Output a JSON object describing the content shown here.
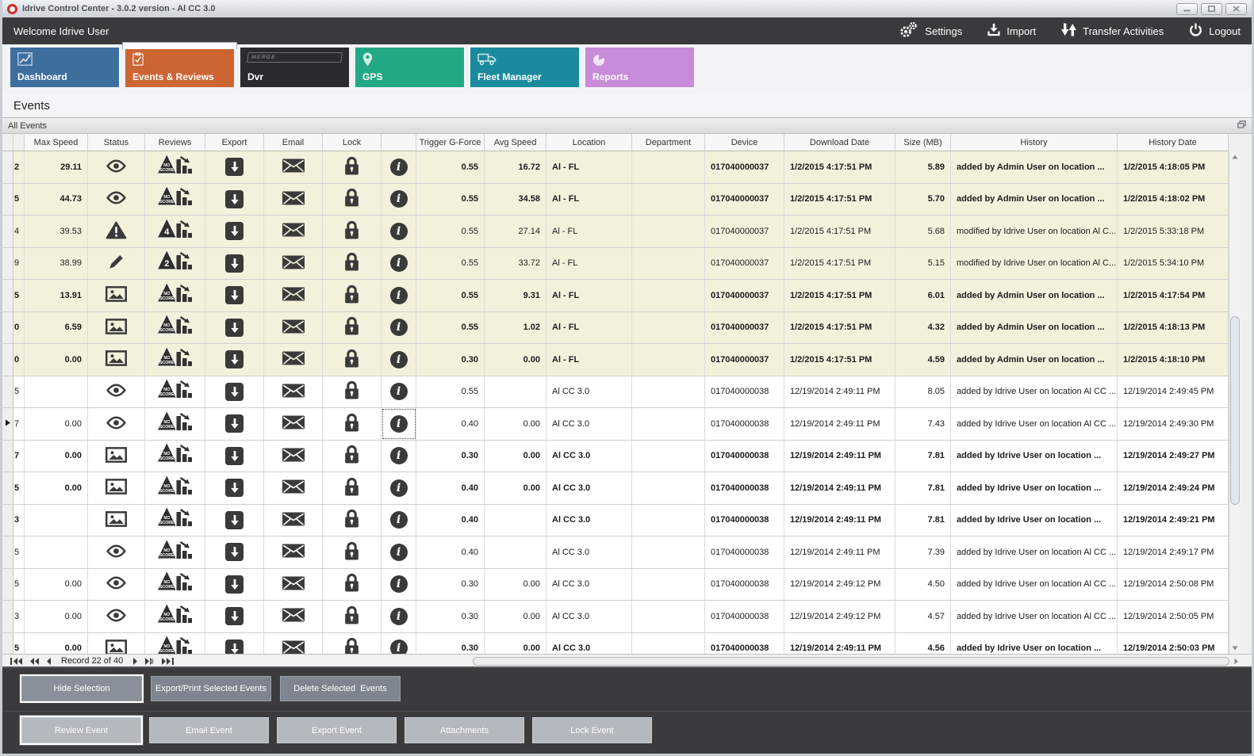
{
  "window": {
    "title": "Idrive Control Center - 3.0.2 version - Al CC 3.0",
    "controls": [
      "minimize",
      "maximize",
      "close"
    ]
  },
  "toolbar": {
    "welcome": "Welcome Idrive User",
    "actions": [
      {
        "label": "Settings",
        "icon": "settings-gears-icon"
      },
      {
        "label": "Import",
        "icon": "import-icon"
      },
      {
        "label": "Transfer Activities",
        "icon": "transfer-arrows-icon"
      },
      {
        "label": "Logout",
        "icon": "power-icon"
      }
    ]
  },
  "tabs": [
    {
      "label": "Dashboard",
      "icon": "line-chart-icon",
      "color": "#3d6e9e",
      "active": false
    },
    {
      "label": "Events & Reviews",
      "icon": "clipboard-check-icon",
      "color": "#cd6532",
      "active": true
    },
    {
      "label": "Dvr",
      "icon": "dvr-logo-icon",
      "color": "#282c30",
      "active": false,
      "logo_text": "MERGE"
    },
    {
      "label": "GPS",
      "icon": "map-pin-icon",
      "color": "#23a886",
      "active": false
    },
    {
      "label": "Fleet Manager",
      "icon": "truck-icon",
      "color": "#1a8a9d",
      "active": false
    },
    {
      "label": "Reports",
      "icon": "pie-chart-icon",
      "color": "#c78bd8",
      "active": false
    }
  ],
  "page_title": "Events",
  "panel": {
    "title": "All Events"
  },
  "colors": {
    "row_tint": "#f2f2dc",
    "row_plain": "#ffffff",
    "icon": "#3a3a3a",
    "topbar": "#3a3a3c"
  },
  "table": {
    "columns": [
      "",
      "",
      "Max Speed",
      "Status",
      "Reviews",
      "Export",
      "Email",
      "Lock",
      "",
      "Trigger G-Force",
      "Avg Speed",
      "Location",
      "Department",
      "Device",
      "Download Date",
      "Size (MB)",
      "History",
      "History Date"
    ],
    "rows": [
      {
        "id": "2",
        "max_speed": "29.11",
        "status": "eye",
        "review": "NO SCORE",
        "gforce": "0.55",
        "avg_speed": "16.72",
        "location": "Al - FL",
        "department": "",
        "device": "017040000037",
        "download_date": "1/2/2015 4:17:51 PM",
        "size": "5.89",
        "history": "added by Admin User on location ...",
        "history_date": "1/2/2015 4:18:05 PM",
        "bold": true,
        "tinted": true,
        "current": false
      },
      {
        "id": "5",
        "max_speed": "44.73",
        "status": "eye",
        "review": "NO SCORE",
        "gforce": "0.55",
        "avg_speed": "34.58",
        "location": "Al - FL",
        "department": "",
        "device": "017040000037",
        "download_date": "1/2/2015 4:17:51 PM",
        "size": "5.70",
        "history": "added by Admin User on location ...",
        "history_date": "1/2/2015 4:18:02 PM",
        "bold": true,
        "tinted": true,
        "current": false
      },
      {
        "id": "4",
        "max_speed": "39.53",
        "status": "warning",
        "review": "4",
        "gforce": "0.55",
        "avg_speed": "27.14",
        "location": "Al - FL",
        "department": "",
        "device": "017040000037",
        "download_date": "1/2/2015 4:17:51 PM",
        "size": "5.68",
        "history": "modified by Idrive User on location Al C...",
        "history_date": "1/2/2015 5:33:18 PM",
        "bold": false,
        "tinted": true,
        "current": false
      },
      {
        "id": "9",
        "max_speed": "38.99",
        "status": "pencil",
        "review": "2",
        "gforce": "0.55",
        "avg_speed": "33.72",
        "location": "Al - FL",
        "department": "",
        "device": "017040000037",
        "download_date": "1/2/2015 4:17:51 PM",
        "size": "5.15",
        "history": "modified by Idrive User on location Al C...",
        "history_date": "1/2/2015 5:34:10 PM",
        "bold": false,
        "tinted": true,
        "current": false
      },
      {
        "id": "5",
        "max_speed": "13.91",
        "status": "picture",
        "review": "NO SCORE",
        "gforce": "0.55",
        "avg_speed": "9.31",
        "location": "Al - FL",
        "department": "",
        "device": "017040000037",
        "download_date": "1/2/2015 4:17:51 PM",
        "size": "6.01",
        "history": "added by Admin User on location ...",
        "history_date": "1/2/2015 4:17:54 PM",
        "bold": true,
        "tinted": true,
        "current": false
      },
      {
        "id": "0",
        "max_speed": "6.59",
        "status": "picture",
        "review": "NO SCORE",
        "gforce": "0.55",
        "avg_speed": "1.02",
        "location": "Al - FL",
        "department": "",
        "device": "017040000037",
        "download_date": "1/2/2015 4:17:51 PM",
        "size": "4.32",
        "history": "added by Admin User on location ...",
        "history_date": "1/2/2015 4:18:13 PM",
        "bold": true,
        "tinted": true,
        "current": false
      },
      {
        "id": "0",
        "max_speed": "0.00",
        "status": "picture",
        "review": "NO SCORE",
        "gforce": "0.30",
        "avg_speed": "0.00",
        "location": "Al - FL",
        "department": "",
        "device": "017040000037",
        "download_date": "1/2/2015 4:17:51 PM",
        "size": "4.59",
        "history": "added by Admin User on location ...",
        "history_date": "1/2/2015 4:18:10 PM",
        "bold": true,
        "tinted": true,
        "current": false
      },
      {
        "id": "5",
        "max_speed": "",
        "status": "eye",
        "review": "NO SCORE",
        "gforce": "0.55",
        "avg_speed": "",
        "location": "Al CC 3.0",
        "department": "",
        "device": "017040000038",
        "download_date": "12/19/2014 2:49:11 PM",
        "size": "8.05",
        "history": "added by Idrive User on location Al CC ...",
        "history_date": "12/19/2014 2:49:45 PM",
        "bold": false,
        "tinted": false,
        "current": false
      },
      {
        "id": "7",
        "max_speed": "0.00",
        "status": "eye",
        "review": "NO SCORE",
        "gforce": "0.40",
        "avg_speed": "0.00",
        "location": "Al CC 3.0",
        "department": "",
        "device": "017040000038",
        "download_date": "12/19/2014 2:49:11 PM",
        "size": "7.43",
        "history": "added by Idrive User on location Al CC ...",
        "history_date": "12/19/2014 2:49:30 PM",
        "bold": false,
        "tinted": false,
        "current": true,
        "focus_cell": "info"
      },
      {
        "id": "7",
        "max_speed": "0.00",
        "status": "picture",
        "review": "NO SCORE",
        "gforce": "0.30",
        "avg_speed": "0.00",
        "location": "Al CC 3.0",
        "department": "",
        "device": "017040000038",
        "download_date": "12/19/2014 2:49:11 PM",
        "size": "7.81",
        "history": "added by Idrive User on location ...",
        "history_date": "12/19/2014 2:49:27 PM",
        "bold": true,
        "tinted": false,
        "current": false
      },
      {
        "id": "5",
        "max_speed": "0.00",
        "status": "picture",
        "review": "NO SCORE",
        "gforce": "0.40",
        "avg_speed": "0.00",
        "location": "Al CC 3.0",
        "department": "",
        "device": "017040000038",
        "download_date": "12/19/2014 2:49:11 PM",
        "size": "7.81",
        "history": "added by Idrive User on location ...",
        "history_date": "12/19/2014 2:49:24 PM",
        "bold": true,
        "tinted": false,
        "current": false
      },
      {
        "id": "3",
        "max_speed": "",
        "status": "picture",
        "review": "NO SCORE",
        "gforce": "0.40",
        "avg_speed": "",
        "location": "Al CC 3.0",
        "department": "",
        "device": "017040000038",
        "download_date": "12/19/2014 2:49:11 PM",
        "size": "7.81",
        "history": "added by Idrive User on location ...",
        "history_date": "12/19/2014 2:49:21 PM",
        "bold": true,
        "tinted": false,
        "current": false
      },
      {
        "id": "5",
        "max_speed": "",
        "status": "eye",
        "review": "NO SCORE",
        "gforce": "0.40",
        "avg_speed": "",
        "location": "Al CC 3.0",
        "department": "",
        "device": "017040000038",
        "download_date": "12/19/2014 2:49:11 PM",
        "size": "7.39",
        "history": "added by Idrive User on location Al CC ...",
        "history_date": "12/19/2014 2:49:17 PM",
        "bold": false,
        "tinted": false,
        "current": false
      },
      {
        "id": "5",
        "max_speed": "0.00",
        "status": "eye",
        "review": "NO SCORE",
        "gforce": "0.30",
        "avg_speed": "0.00",
        "location": "Al CC 3.0",
        "department": "",
        "device": "017040000038",
        "download_date": "12/19/2014 2:49:12 PM",
        "size": "4.50",
        "history": "added by Idrive User on location Al CC ...",
        "history_date": "12/19/2014 2:50:08 PM",
        "bold": false,
        "tinted": false,
        "current": false
      },
      {
        "id": "3",
        "max_speed": "0.00",
        "status": "eye",
        "review": "NO SCORE",
        "gforce": "0.30",
        "avg_speed": "0.00",
        "location": "Al CC 3.0",
        "department": "",
        "device": "017040000038",
        "download_date": "12/19/2014 2:49:12 PM",
        "size": "4.57",
        "history": "added by Idrive User on location Al CC ...",
        "history_date": "12/19/2014 2:50:05 PM",
        "bold": false,
        "tinted": false,
        "current": false
      },
      {
        "id": "5",
        "max_speed": "0.00",
        "status": "picture",
        "review": "NO SCORE",
        "gforce": "0.30",
        "avg_speed": "0.00",
        "location": "Al CC 3.0",
        "department": "",
        "device": "017040000038",
        "download_date": "12/19/2014 2:49:11 PM",
        "size": "4.56",
        "history": "added by Idrive User on location ...",
        "history_date": "12/19/2014 2:50:03 PM",
        "bold": true,
        "tinted": false,
        "current": false
      }
    ]
  },
  "pager": {
    "record_text": "Record 22 of 40"
  },
  "actions": {
    "selection_buttons": [
      "Hide Selection",
      "Export/Print Selected Events",
      "Delete Selected  Events"
    ],
    "event_buttons": [
      "Review Event",
      "Email Event",
      "Export Event",
      "Attachments",
      "Lock Event"
    ],
    "focused_selection": "Hide Selection",
    "focused_event": "Review Event"
  }
}
